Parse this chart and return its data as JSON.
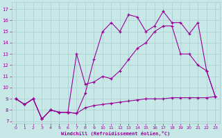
{
  "xlabel": "Windchill (Refroidissement éolien,°C)",
  "bg_color": "#c8e8e8",
  "grid_color": "#a8cccc",
  "line_color": "#990099",
  "x_ticks": [
    0,
    1,
    2,
    3,
    4,
    5,
    6,
    7,
    8,
    9,
    10,
    11,
    12,
    13,
    14,
    15,
    16,
    17,
    18,
    19,
    20,
    21,
    22,
    23
  ],
  "y_ticks": [
    7,
    8,
    9,
    10,
    11,
    12,
    13,
    14,
    15,
    16,
    17
  ],
  "ylim": [
    6.8,
    17.6
  ],
  "xlim": [
    -0.5,
    23.5
  ],
  "line_top_x": [
    0,
    1,
    2,
    3,
    4,
    5,
    6,
    7,
    8,
    9,
    10,
    11,
    12,
    13,
    14,
    15,
    16,
    17,
    18,
    19,
    20,
    21,
    22,
    23
  ],
  "line_top_y": [
    9.0,
    8.5,
    9.0,
    7.2,
    8.0,
    7.8,
    7.8,
    7.7,
    9.5,
    12.5,
    15.0,
    15.8,
    15.0,
    16.5,
    16.3,
    15.0,
    15.5,
    16.8,
    15.8,
    15.8,
    14.8,
    15.8,
    11.5,
    9.2
  ],
  "line_mid_x": [
    0,
    1,
    2,
    3,
    4,
    5,
    6,
    7,
    8,
    9,
    10,
    11,
    12,
    13,
    14,
    15,
    16,
    17,
    18,
    19,
    20,
    21,
    22,
    23
  ],
  "line_mid_y": [
    9.0,
    8.5,
    9.0,
    7.2,
    8.0,
    7.8,
    7.8,
    13.0,
    10.3,
    10.5,
    11.0,
    10.8,
    11.5,
    12.5,
    13.5,
    14.0,
    15.0,
    15.5,
    15.5,
    13.0,
    13.0,
    12.0,
    11.5,
    9.2
  ],
  "line_bot_x": [
    0,
    1,
    2,
    3,
    4,
    5,
    6,
    7,
    8,
    9,
    10,
    11,
    12,
    13,
    14,
    15,
    16,
    17,
    18,
    19,
    20,
    21,
    22,
    23
  ],
  "line_bot_y": [
    9.0,
    8.5,
    9.0,
    7.2,
    8.0,
    7.8,
    7.8,
    7.7,
    8.2,
    8.4,
    8.5,
    8.6,
    8.7,
    8.8,
    8.9,
    9.0,
    9.0,
    9.0,
    9.1,
    9.1,
    9.1,
    9.1,
    9.1,
    9.2
  ]
}
